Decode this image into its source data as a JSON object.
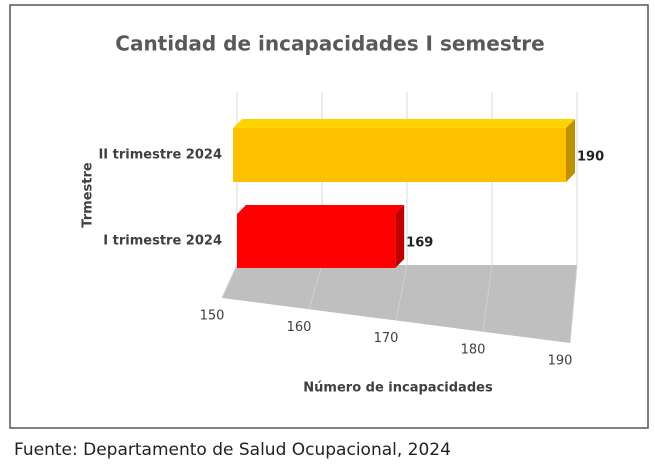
{
  "chart_data": {
    "type": "bar",
    "orientation": "horizontal",
    "title": "Cantidad de incapacidades I semestre",
    "categories": [
      "I trimestre 2024",
      "II trimestre 2024"
    ],
    "values": [
      169,
      190
    ],
    "colors": [
      "#ff0000",
      "#ffc000"
    ],
    "xlim": [
      150,
      190
    ],
    "xticks": [
      150,
      160,
      170,
      180,
      190
    ],
    "grid": true,
    "xlabel": "Número de incapacidades",
    "ylabel": "Trmestre"
  },
  "caption": "Fuente: Departamento de Salud Ocupacional, 2024"
}
